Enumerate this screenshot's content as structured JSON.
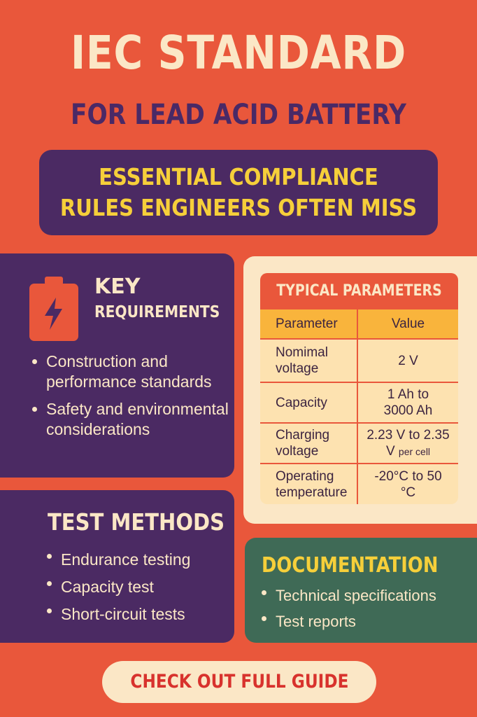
{
  "title": "IEC STANDARD",
  "subtitle": "FOR LEAD ACID BATTERY",
  "banner": [
    "ESSENTIAL COMPLIANCE",
    "RULES ENGINEERS OFTEN MISS"
  ],
  "key": {
    "icon": "battery-lightning-icon",
    "title_a": "KEY",
    "title_b": "REQUIREMENTS",
    "items": [
      "Construction and performance standards",
      "Safety and environmental considerations"
    ]
  },
  "params": {
    "title": "TYPICAL PARAMETERS",
    "headers": [
      "Parameter",
      "Value"
    ],
    "rows": [
      [
        "Nomimal voltage",
        "2 V",
        ""
      ],
      [
        "Capacity",
        "1 Ah to 3000 Ah",
        ""
      ],
      [
        "Charging voltage",
        "2.23 V to 2.35 V",
        "per cell"
      ],
      [
        "Operating temperature",
        "-20°C to 50 °C",
        ""
      ]
    ]
  },
  "test": {
    "title": "TEST METHODS",
    "items": [
      "Endurance testing",
      "Capacity test",
      "Short-circuit tests"
    ]
  },
  "doc": {
    "title": "DOCUMENTATION",
    "items": [
      "Technical specifications",
      "Test reports"
    ]
  },
  "cta": "CHECK OUT FULL GUIDE",
  "colors": {
    "background": "#e9573b",
    "purple": "#4b2a63",
    "yellow": "#f6cf3a",
    "cream": "#fbe7c6",
    "green": "#3f6a56"
  }
}
